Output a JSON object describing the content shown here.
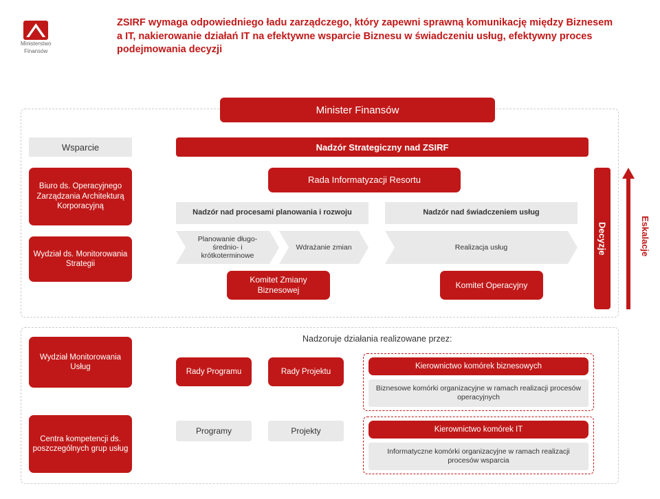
{
  "logo": {
    "line1": "Ministerstwo",
    "line2": "Finansów"
  },
  "headline": "ZSIRF wymaga odpowiedniego ładu zarządczego, który zapewni sprawną komunikację między Biznesem a IT, nakierowanie działań IT na efektywne wsparcie Biznesu w świadczeniu usług, efektywny proces podejmowania decyzji",
  "minister": "Minister Finansów",
  "wsparcie": "Wsparcie",
  "nadzor_strategiczny": "Nadzór Strategiczny nad ZSIRF",
  "sidebar": {
    "biuro": "Biuro ds. Operacyjnego Zarządzania Architekturą Korporacyjną",
    "wydzial_strat": "Wydział ds. Monitorowania Strategii",
    "wydzial_uslug": "Wydział Monitorowania Usług",
    "centra": "Centra kompetencji ds. poszczególnych grup usług"
  },
  "rada": "Rada Informatyzacji Resortu",
  "headers": {
    "nadzor_proc": "Nadzór nad procesami planowania i rozwoju",
    "nadzor_swiad": "Nadzór nad świadczeniem usług"
  },
  "arrows": {
    "planowanie": "Planowanie długo- średnio- i krótkoterminowe",
    "wdrazanie": "Wdrażanie zmian",
    "realizacja": "Realizacja usług"
  },
  "komitet_zm": "Komitet Zmiany Biznesowej",
  "komitet_op": "Komitet Operacyjny",
  "decyzje": "Decyzje",
  "eskalacje": "Eskalacje",
  "nadzoruje": "Nadzoruje działania realizowane przez:",
  "rady_programu": "Rady Programu",
  "rady_projektu": "Rady Projektu",
  "programy": "Programy",
  "projekty": "Projekty",
  "kier_biz": "Kierownictwo komórek biznesowych",
  "biz_kom": "Biznesowe komórki organizacyjne w ramach realizacji procesów operacyjnych",
  "kier_it": "Kierownictwo komórek IT",
  "inf_kom": "Informatyczne komórki organizacyjne w ramach realizacji procesów wsparcia",
  "colors": {
    "primary": "#c01818",
    "gray_box": "#e9e9e9",
    "dash": "#cccccc",
    "bg": "#ffffff",
    "text": "#333333"
  }
}
